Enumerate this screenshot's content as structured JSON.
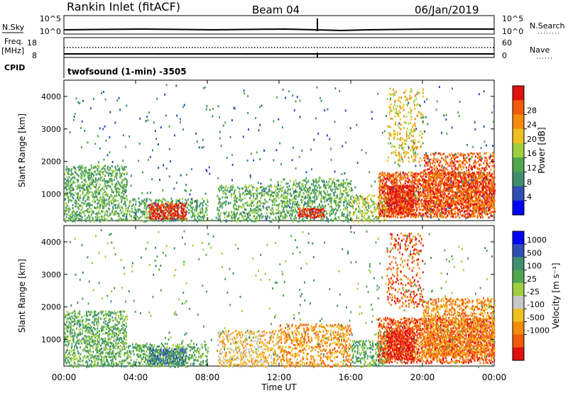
{
  "header": {
    "station": "Rankin Inlet (fitACF)",
    "beam": "Beam 04",
    "date": "06/Jan/2019"
  },
  "summary": {
    "nsky_label": "N.Sky",
    "nsky_ticks": [
      "10^5",
      "10^0"
    ],
    "nsearch_label": "N.Search",
    "nsearch_ticks": [
      "10^5",
      "10^0"
    ],
    "freq_label": "Freq.",
    "freq_unit": "[MHz]",
    "freq_ticks": [
      "18",
      "8"
    ],
    "nave_label": "Nave",
    "nave_ticks": [
      "60",
      "0"
    ],
    "cpid_label": "CPID",
    "cpid_text": "twofsound (1-min) -3505"
  },
  "colors": {
    "power": [
      "#0000ff",
      "#2f4fb5",
      "#3f8f6f",
      "#4fa74f",
      "#9fcf3f",
      "#f0c020",
      "#f58a0a",
      "#f05a0a",
      "#e01010"
    ],
    "velocity": [
      "#e01010",
      "#f05a0a",
      "#f58a0a",
      "#f0c020",
      "#c8c8c8",
      "#9fcf3f",
      "#4fa74f",
      "#3f8f6f",
      "#2f4fb5",
      "#0000ff"
    ]
  },
  "chart_data": [
    {
      "type": "heatmap",
      "panel": "power",
      "ylabel": "Slant Range [km]",
      "yticks": [
        "1000",
        "2000",
        "3000",
        "4000"
      ],
      "ylim": [
        180,
        4500
      ],
      "xlim": [
        0,
        24
      ],
      "xticks": [
        "00:00",
        "04:00",
        "08:00",
        "12:00",
        "16:00",
        "20:00",
        "00:00"
      ],
      "colorbar_label": "Power [dB]",
      "colorbar_ticks": [
        "4",
        "8",
        "12",
        "16",
        "20",
        "24",
        "28"
      ],
      "scatter": [
        {
          "t0": 0.0,
          "t1": 3.5,
          "r0": 180,
          "r1": 1900,
          "density": 0.55,
          "level": 3
        },
        {
          "t0": 3.5,
          "t1": 8.0,
          "r0": 180,
          "r1": 900,
          "density": 0.5,
          "level": 3
        },
        {
          "t0": 4.7,
          "t1": 6.8,
          "r0": 250,
          "r1": 750,
          "density": 0.85,
          "level": 8
        },
        {
          "t0": 8.5,
          "t1": 12.0,
          "r0": 180,
          "r1": 1300,
          "density": 0.45,
          "level": 3
        },
        {
          "t0": 12.0,
          "t1": 16.0,
          "r0": 180,
          "r1": 1500,
          "density": 0.5,
          "level": 3
        },
        {
          "t0": 13.0,
          "t1": 14.5,
          "r0": 300,
          "r1": 600,
          "density": 0.8,
          "level": 8
        },
        {
          "t0": 16.0,
          "t1": 18.0,
          "r0": 180,
          "r1": 1000,
          "density": 0.55,
          "level": 4
        },
        {
          "t0": 17.5,
          "t1": 24.0,
          "r0": 300,
          "r1": 1700,
          "density": 0.75,
          "level": 7
        },
        {
          "t0": 18.0,
          "t1": 19.5,
          "r0": 400,
          "r1": 1300,
          "density": 0.9,
          "level": 8
        },
        {
          "t0": 20.0,
          "t1": 24.0,
          "r0": 500,
          "r1": 2300,
          "density": 0.55,
          "level": 7
        },
        {
          "t0": 18.0,
          "t1": 20.0,
          "r0": 2000,
          "r1": 4300,
          "density": 0.25,
          "level": 5
        },
        {
          "t0": 0.0,
          "t1": 24.0,
          "r0": 180,
          "r1": 4400,
          "density": 0.02,
          "level": 2
        }
      ]
    },
    {
      "type": "heatmap",
      "panel": "velocity",
      "ylabel": "Slant Range [km]",
      "yticks": [
        "1000",
        "2000",
        "3000",
        "4000"
      ],
      "ylim": [
        180,
        4500
      ],
      "xlim": [
        0,
        24
      ],
      "xticks": [
        "00:00",
        "04:00",
        "08:00",
        "12:00",
        "16:00",
        "20:00",
        "00:00"
      ],
      "xlabel": "Time UT",
      "colorbar_label": "Velocity [m s⁻¹]",
      "colorbar_ticks": [
        "1000",
        "500",
        "100",
        "25",
        "-25",
        "-100",
        "-500",
        "-1000"
      ],
      "scatter": [
        {
          "t0": 0.0,
          "t1": 3.5,
          "r0": 180,
          "r1": 1900,
          "density": 0.55,
          "level": 6
        },
        {
          "t0": 3.5,
          "t1": 8.0,
          "r0": 180,
          "r1": 900,
          "density": 0.5,
          "level": 6
        },
        {
          "t0": 4.7,
          "t1": 6.8,
          "r0": 250,
          "r1": 750,
          "density": 0.85,
          "level": 7
        },
        {
          "t0": 8.5,
          "t1": 12.0,
          "r0": 180,
          "r1": 1300,
          "density": 0.45,
          "level": 3
        },
        {
          "t0": 12.0,
          "t1": 16.0,
          "r0": 180,
          "r1": 1500,
          "density": 0.5,
          "level": 2
        },
        {
          "t0": 16.0,
          "t1": 18.0,
          "r0": 180,
          "r1": 1000,
          "density": 0.55,
          "level": 6
        },
        {
          "t0": 17.5,
          "t1": 24.0,
          "r0": 300,
          "r1": 1700,
          "density": 0.75,
          "level": 1
        },
        {
          "t0": 18.0,
          "t1": 19.5,
          "r0": 400,
          "r1": 1300,
          "density": 0.9,
          "level": 0
        },
        {
          "t0": 20.0,
          "t1": 24.0,
          "r0": 500,
          "r1": 2300,
          "density": 0.55,
          "level": 2
        },
        {
          "t0": 18.0,
          "t1": 20.0,
          "r0": 2000,
          "r1": 4300,
          "density": 0.25,
          "level": 1
        },
        {
          "t0": 0.0,
          "t1": 24.0,
          "r0": 180,
          "r1": 4400,
          "density": 0.02,
          "level": 6
        }
      ]
    }
  ]
}
